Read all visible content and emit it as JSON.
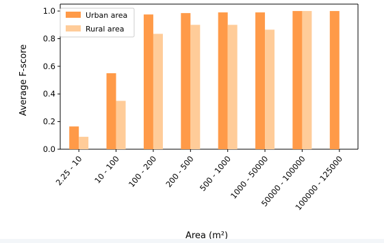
{
  "chart_data": {
    "type": "bar",
    "categories": [
      "2.25 - 10",
      "10 - 100",
      "100 - 200",
      "200 - 500",
      "500 - 1000",
      "1000 - 50000",
      "50000 - 100000",
      "100000 - 125000"
    ],
    "series": [
      {
        "name": "Urban area",
        "color": "#ff9a48",
        "values": [
          0.165,
          0.55,
          0.975,
          0.985,
          0.99,
          0.99,
          1.0,
          1.0
        ]
      },
      {
        "name": "Rural area",
        "color": "#ffcc99",
        "values": [
          0.09,
          0.35,
          0.835,
          0.9,
          0.9,
          0.865,
          1.0,
          null
        ]
      }
    ],
    "xlabel": "Area (m²)",
    "ylabel": "Average F-score",
    "ylim": [
      0,
      1.05
    ],
    "yticks": [
      "0.0",
      "0.2",
      "0.4",
      "0.6",
      "0.8",
      "1.0"
    ],
    "legend_position": "top-left",
    "grid": false
  }
}
